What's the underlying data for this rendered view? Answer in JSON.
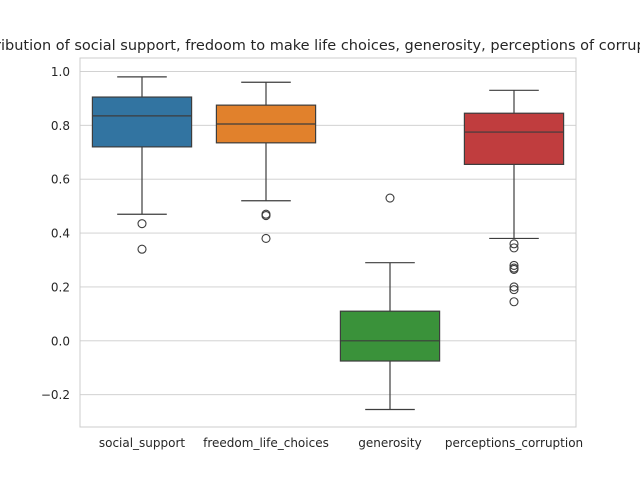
{
  "chart_data": {
    "type": "box",
    "title": "Distribution of social support, fredoom to make life choices, generosity, perceptions of corruption",
    "xlabel": "",
    "ylabel": "",
    "ylim": [
      -0.32,
      1.05
    ],
    "yticks": [
      -0.2,
      0.0,
      0.2,
      0.4,
      0.6,
      0.8,
      1.0
    ],
    "ytick_labels": [
      "−0.2",
      "0.0",
      "0.2",
      "0.4",
      "0.6",
      "0.8",
      "1.0"
    ],
    "grid": "horizontal",
    "categories": [
      "social_support",
      "freedom_life_choices",
      "generosity",
      "perceptions_corruption"
    ],
    "boxes": [
      {
        "name": "social_support",
        "color": "#3274a1",
        "whislo": 0.47,
        "q1": 0.72,
        "median": 0.835,
        "q3": 0.905,
        "whishi": 0.98,
        "fliers": [
          0.435,
          0.34
        ]
      },
      {
        "name": "freedom_life_choices",
        "color": "#e1812c",
        "whislo": 0.52,
        "q1": 0.735,
        "median": 0.805,
        "q3": 0.875,
        "whishi": 0.96,
        "fliers": [
          0.47,
          0.465,
          0.38
        ]
      },
      {
        "name": "generosity",
        "color": "#3a923a",
        "whislo": -0.255,
        "q1": -0.075,
        "median": 0.0,
        "q3": 0.11,
        "whishi": 0.29,
        "fliers": [
          0.53
        ]
      },
      {
        "name": "perceptions_corruption",
        "color": "#c03d3e",
        "whislo": 0.38,
        "q1": 0.655,
        "median": 0.775,
        "q3": 0.845,
        "whishi": 0.93,
        "fliers": [
          0.36,
          0.345,
          0.28,
          0.27,
          0.265,
          0.2,
          0.19,
          0.145
        ]
      }
    ]
  }
}
